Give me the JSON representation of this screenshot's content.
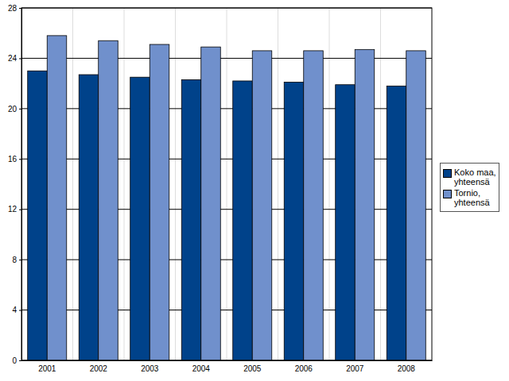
{
  "chart_data": {
    "type": "bar",
    "categories": [
      "2001",
      "2002",
      "2003",
      "2004",
      "2005",
      "2006",
      "2007",
      "2008"
    ],
    "series": [
      {
        "name": "Koko maa, yhteensä",
        "color": "#00428a",
        "values": [
          23.0,
          22.7,
          22.5,
          22.3,
          22.2,
          22.1,
          21.9,
          21.8
        ]
      },
      {
        "name": "Tornio, yhteensä",
        "color": "#7090cc",
        "values": [
          25.8,
          25.4,
          25.1,
          24.9,
          24.6,
          24.6,
          24.7,
          24.6
        ]
      }
    ],
    "ylim": [
      0,
      28
    ],
    "yticks": [
      0,
      4,
      8,
      12,
      16,
      20,
      24,
      28
    ],
    "grid": true,
    "legend": "right"
  }
}
